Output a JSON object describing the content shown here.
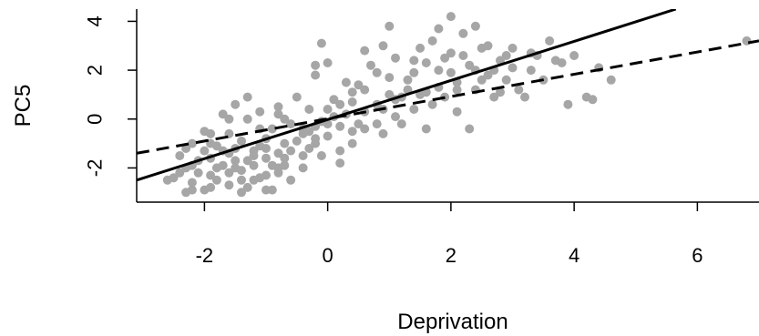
{
  "chart_data": {
    "type": "scatter",
    "xlabel": "Deprivation",
    "ylabel": "PC5",
    "xlim": [
      -3.1,
      7.0
    ],
    "ylim": [
      -3.4,
      4.5
    ],
    "x_ticks": [
      -2,
      0,
      2,
      4,
      6
    ],
    "y_ticks": [
      -2,
      0,
      2,
      4
    ],
    "x_tick_labels": [
      "-2",
      "0",
      "2",
      "4",
      "6"
    ],
    "y_tick_labels": [
      "-2",
      "0",
      "2",
      "4"
    ],
    "point_color": "#a6a6a6",
    "line_color": "#000000",
    "grid": false,
    "points": [
      [
        -2.3,
        -2.0
      ],
      [
        -2.2,
        -2.6
      ],
      [
        -2.1,
        -2.2
      ],
      [
        -2.0,
        -2.9
      ],
      [
        -1.9,
        -1.6
      ],
      [
        -1.8,
        -2.5
      ],
      [
        -1.7,
        -1.9
      ],
      [
        -1.6,
        -2.7
      ],
      [
        -1.5,
        -1.2
      ],
      [
        -1.4,
        -2.1
      ],
      [
        -1.3,
        -2.8
      ],
      [
        -1.2,
        -1.5
      ],
      [
        -1.1,
        -2.4
      ],
      [
        -1.0,
        -0.8
      ],
      [
        -0.9,
        -1.9
      ],
      [
        -0.8,
        -2.2
      ],
      [
        -2.4,
        -1.5
      ],
      [
        -2.2,
        -1.0
      ],
      [
        -2.0,
        -0.5
      ],
      [
        -1.8,
        -1.1
      ],
      [
        -1.7,
        0.2
      ],
      [
        -1.6,
        -0.6
      ],
      [
        -1.5,
        0.6
      ],
      [
        -1.4,
        -0.9
      ],
      [
        -1.3,
        0.0
      ],
      [
        -1.2,
        -1.3
      ],
      [
        -1.1,
        0.3
      ],
      [
        -1.0,
        -1.6
      ],
      [
        -0.9,
        -0.4
      ],
      [
        -0.8,
        0.5
      ],
      [
        -0.7,
        -1.0
      ],
      [
        -0.6,
        -2.5
      ],
      [
        -2.5,
        -2.4
      ],
      [
        -2.3,
        -3.0
      ],
      [
        -2.1,
        -1.7
      ],
      [
        -1.9,
        -2.3
      ],
      [
        -1.7,
        -1.3
      ],
      [
        -1.5,
        -2.0
      ],
      [
        -1.3,
        -1.7
      ],
      [
        -1.1,
        -1.1
      ],
      [
        -0.9,
        -2.9
      ],
      [
        -0.7,
        -1.6
      ],
      [
        -0.5,
        -0.9
      ],
      [
        -0.4,
        -2.0
      ],
      [
        -0.3,
        -1.2
      ],
      [
        -0.2,
        -0.3
      ],
      [
        -0.1,
        -1.5
      ],
      [
        0.0,
        -0.7
      ],
      [
        -0.5,
        0.9
      ],
      [
        -0.3,
        0.4
      ],
      [
        -0.2,
        1.8
      ],
      [
        -0.1,
        -0.1
      ],
      [
        0.0,
        2.3
      ],
      [
        0.1,
        0.8
      ],
      [
        0.2,
        -1.8
      ],
      [
        0.3,
        0.2
      ],
      [
        0.4,
        -1.0
      ],
      [
        0.5,
        1.4
      ],
      [
        0.6,
        -0.4
      ],
      [
        0.7,
        2.2
      ],
      [
        0.8,
        0.6
      ],
      [
        0.9,
        -0.6
      ],
      [
        1.0,
        1.0
      ],
      [
        1.1,
        0.1
      ],
      [
        -1.3,
        0.9
      ],
      [
        -1.0,
        -1.2
      ],
      [
        -0.7,
        0.0
      ],
      [
        -0.4,
        -0.6
      ],
      [
        -0.2,
        2.2
      ],
      [
        -0.1,
        3.1
      ],
      [
        0.2,
        -1.3
      ],
      [
        0.4,
        0.7
      ],
      [
        0.6,
        2.8
      ],
      [
        0.8,
        1.9
      ],
      [
        0.9,
        3.0
      ],
      [
        1.1,
        2.5
      ],
      [
        1.2,
        -0.2
      ],
      [
        1.3,
        1.6
      ],
      [
        1.4,
        0.4
      ],
      [
        1.5,
        2.9
      ],
      [
        1.6,
        1.1
      ],
      [
        1.7,
        3.2
      ],
      [
        1.8,
        2.0
      ],
      [
        1.9,
        0.9
      ],
      [
        2.0,
        2.7
      ],
      [
        2.1,
        1.5
      ],
      [
        2.2,
        3.5
      ],
      [
        2.3,
        2.2
      ],
      [
        2.4,
        1.2
      ],
      [
        2.5,
        2.9
      ],
      [
        2.6,
        1.8
      ],
      [
        2.7,
        0.9
      ],
      [
        2.8,
        2.4
      ],
      [
        2.9,
        1.6
      ],
      [
        3.0,
        2.1
      ],
      [
        3.1,
        1.2
      ],
      [
        1.0,
        3.8
      ],
      [
        1.4,
        2.4
      ],
      [
        1.6,
        -0.4
      ],
      [
        1.8,
        3.7
      ],
      [
        2.0,
        4.2
      ],
      [
        2.1,
        0.3
      ],
      [
        2.4,
        3.8
      ],
      [
        2.6,
        3.0
      ],
      [
        3.0,
        2.9
      ],
      [
        3.3,
        2.0
      ],
      [
        3.5,
        1.6
      ],
      [
        3.6,
        3.2
      ],
      [
        3.8,
        2.3
      ],
      [
        3.9,
        0.6
      ],
      [
        4.0,
        2.6
      ],
      [
        4.2,
        0.9
      ],
      [
        4.3,
        0.8
      ],
      [
        4.4,
        2.1
      ],
      [
        4.6,
        1.6
      ],
      [
        3.4,
        2.6
      ],
      [
        3.2,
        0.9
      ],
      [
        2.8,
        1.1
      ],
      [
        2.3,
        -0.4
      ],
      [
        1.5,
        1.0
      ],
      [
        -2.2,
        -1.9
      ],
      [
        -2.0,
        -1.3
      ],
      [
        -1.8,
        -2.0
      ],
      [
        -1.6,
        -1.4
      ],
      [
        -1.4,
        -2.5
      ],
      [
        -1.2,
        -1.9
      ],
      [
        -1.0,
        -2.3
      ],
      [
        -0.8,
        -1.4
      ],
      [
        -0.6,
        -0.2
      ],
      [
        -0.4,
        -1.5
      ],
      [
        -0.2,
        -0.8
      ],
      [
        0.0,
        0.4
      ],
      [
        0.2,
        -0.3
      ],
      [
        0.4,
        1.1
      ],
      [
        0.6,
        0.3
      ],
      [
        0.8,
        -0.2
      ],
      [
        1.0,
        1.7
      ],
      [
        1.2,
        0.9
      ],
      [
        1.4,
        1.9
      ],
      [
        1.6,
        2.3
      ],
      [
        1.8,
        1.3
      ],
      [
        2.0,
        1.9
      ],
      [
        2.2,
        2.6
      ],
      [
        2.4,
        2.0
      ],
      [
        -2.3,
        -1.2
      ],
      [
        -1.9,
        -1.0
      ],
      [
        -1.5,
        -1.7
      ],
      [
        -1.1,
        -0.4
      ],
      [
        -0.7,
        -1.9
      ],
      [
        -0.3,
        -0.5
      ],
      [
        0.1,
        0.1
      ],
      [
        0.5,
        -0.2
      ],
      [
        0.9,
        0.4
      ],
      [
        1.3,
        1.2
      ],
      [
        1.7,
        0.6
      ],
      [
        2.1,
        1.2
      ],
      [
        2.5,
        1.6
      ],
      [
        2.9,
        2.6
      ],
      [
        3.3,
        2.7
      ],
      [
        3.7,
        2.4
      ],
      [
        -2.6,
        -2.5
      ],
      [
        -2.4,
        -2.2
      ],
      [
        -2.2,
        -2.9
      ],
      [
        -1.9,
        -2.8
      ],
      [
        -1.6,
        -2.2
      ],
      [
        -1.4,
        -3.0
      ],
      [
        -1.2,
        -2.5
      ],
      [
        -1.0,
        -2.9
      ],
      [
        -0.8,
        -2.0
      ],
      [
        -0.6,
        -1.3
      ],
      [
        -0.4,
        -0.4
      ],
      [
        -0.2,
        -1.0
      ],
      [
        0.0,
        -0.2
      ],
      [
        0.2,
        0.6
      ],
      [
        0.4,
        -0.5
      ],
      [
        0.6,
        1.2
      ],
      [
        6.8,
        3.2
      ],
      [
        1.1,
        0.8
      ],
      [
        1.9,
        2.5
      ],
      [
        2.7,
        2.0
      ],
      [
        0.3,
        1.5
      ],
      [
        -0.8,
        0.2
      ],
      [
        -1.9,
        -0.6
      ],
      [
        -1.6,
        0.0
      ]
    ],
    "lines": [
      {
        "style": "solid",
        "x": [
          -3.1,
          5.65
        ],
        "y": [
          -2.5,
          4.5
        ]
      },
      {
        "style": "dashed",
        "x": [
          -3.1,
          7.0
        ],
        "y": [
          -1.4,
          3.2
        ]
      }
    ]
  }
}
